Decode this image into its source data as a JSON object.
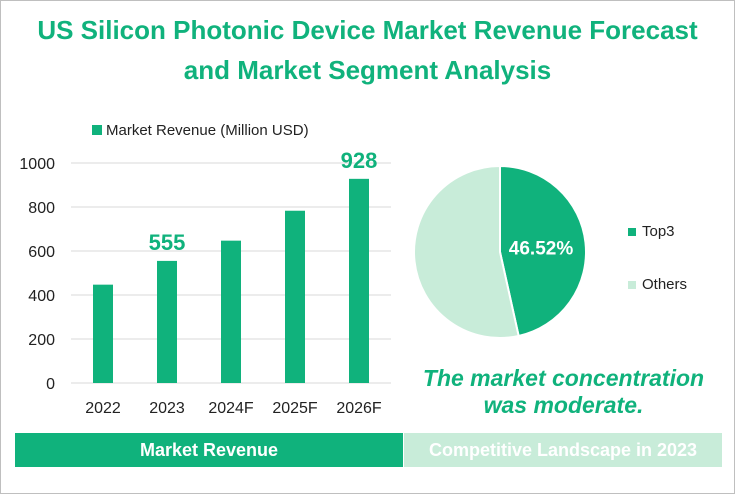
{
  "title_line1": "US Silicon Photonic Device Market Revenue Forecast",
  "title_line2": "and Market Segment Analysis",
  "colors": {
    "accent": "#10b27c",
    "light": "#c8ecd9"
  },
  "chart_data": [
    {
      "type": "bar",
      "legend": "Market Revenue (Million USD)",
      "categories": [
        "2022",
        "2023",
        "2024F",
        "2025F",
        "2026F"
      ],
      "values": [
        447,
        555,
        647,
        783,
        928
      ],
      "data_labels": {
        "1": "555",
        "4": "928"
      },
      "yticks": [
        "0",
        "200",
        "400",
        "600",
        "800",
        "1000"
      ],
      "ylim": [
        0,
        1000
      ],
      "grid": true
    },
    {
      "type": "pie",
      "slices": [
        {
          "name": "Top3",
          "value": 46.52,
          "label": "46.52%"
        },
        {
          "name": "Others",
          "value": 53.48
        }
      ]
    }
  ],
  "note": "The market concentration was moderate.",
  "bands": {
    "left": "Market Revenue",
    "right": "Competitive Landscape in 2023"
  }
}
